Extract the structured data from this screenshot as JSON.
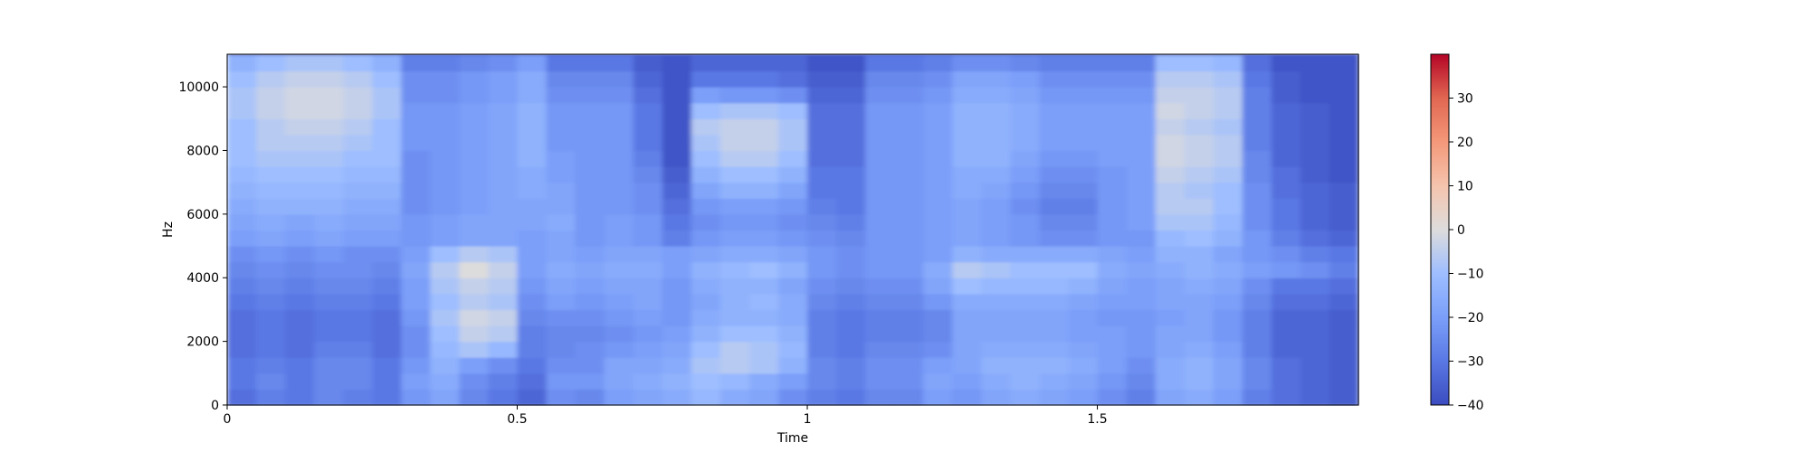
{
  "chart_data": {
    "type": "heatmap",
    "subtype": "spectrogram",
    "title": "",
    "xlabel": "Time",
    "ylabel": "Hz",
    "xlim": [
      0,
      1.95
    ],
    "ylim": [
      0,
      11025
    ],
    "xticks": [
      0,
      0.5,
      1,
      1.5
    ],
    "xtick_labels": [
      "0",
      "0.5",
      "1",
      "1.5"
    ],
    "yticks": [
      0,
      2000,
      4000,
      6000,
      8000,
      10000
    ],
    "ytick_labels": [
      "0",
      "2000",
      "4000",
      "6000",
      "8000",
      "10000"
    ],
    "colormap": "coolwarm",
    "colorbar": {
      "vmin": -40,
      "vmax": 40,
      "ticks": [
        -40,
        -30,
        -20,
        -10,
        0,
        10,
        20,
        30
      ],
      "tick_labels": [
        "−40",
        "−30",
        "−20",
        "−10",
        "0",
        "10",
        "20",
        "30"
      ]
    },
    "grid": false,
    "time_axis": [
      0.0,
      0.05,
      0.1,
      0.15,
      0.2,
      0.25,
      0.3,
      0.35,
      0.4,
      0.45,
      0.5,
      0.55,
      0.6,
      0.65,
      0.7,
      0.75,
      0.8,
      0.85,
      0.9,
      0.95,
      1.0,
      1.05,
      1.1,
      1.15,
      1.2,
      1.25,
      1.3,
      1.35,
      1.4,
      1.45,
      1.5,
      1.55,
      1.6,
      1.65,
      1.7,
      1.75,
      1.8,
      1.85,
      1.9
    ],
    "frequency_axis_hz": [
      0,
      500,
      1000,
      1500,
      2000,
      2500,
      3000,
      3500,
      4000,
      4500,
      5000,
      5500,
      6000,
      6500,
      7000,
      7500,
      8000,
      8500,
      9000,
      9500,
      10000,
      10500,
      11000
    ],
    "values_db": [
      [
        -32,
        -28,
        -30,
        -26,
        -28,
        -30,
        -22,
        -18,
        -26,
        -30,
        -34,
        -24,
        -26,
        -20,
        -18,
        -16,
        -12,
        -16,
        -18,
        -24,
        -28,
        -30,
        -26,
        -26,
        -20,
        -22,
        -18,
        -16,
        -18,
        -20,
        -24,
        -28,
        -18,
        -16,
        -20,
        -28,
        -32,
        -34,
        -36
      ],
      [
        -30,
        -26,
        -30,
        -26,
        -26,
        -30,
        -20,
        -16,
        -24,
        -28,
        -32,
        -22,
        -22,
        -18,
        -16,
        -14,
        -10,
        -12,
        -16,
        -20,
        -26,
        -28,
        -24,
        -24,
        -18,
        -20,
        -16,
        -14,
        -16,
        -18,
        -22,
        -26,
        -16,
        -14,
        -18,
        -26,
        -32,
        -34,
        -36
      ],
      [
        -30,
        -28,
        -30,
        -26,
        -26,
        -30,
        -22,
        -14,
        -20,
        -24,
        -30,
        -24,
        -24,
        -18,
        -18,
        -16,
        -8,
        -6,
        -8,
        -14,
        -26,
        -28,
        -24,
        -24,
        -20,
        -18,
        -14,
        -14,
        -14,
        -16,
        -20,
        -24,
        -16,
        -14,
        -18,
        -26,
        -32,
        -34,
        -36
      ],
      [
        -32,
        -30,
        -32,
        -28,
        -28,
        -32,
        -24,
        -12,
        -8,
        -12,
        -28,
        -26,
        -24,
        -22,
        -20,
        -18,
        -10,
        -6,
        -8,
        -12,
        -28,
        -30,
        -26,
        -26,
        -24,
        -18,
        -16,
        -16,
        -16,
        -18,
        -20,
        -22,
        -18,
        -16,
        -20,
        -28,
        -34,
        -34,
        -36
      ],
      [
        -32,
        -30,
        -32,
        -30,
        -30,
        -32,
        -24,
        -10,
        -4,
        -6,
        -28,
        -26,
        -26,
        -24,
        -22,
        -20,
        -14,
        -10,
        -10,
        -14,
        -28,
        -30,
        -28,
        -28,
        -26,
        -18,
        -18,
        -18,
        -18,
        -20,
        -20,
        -22,
        -18,
        -18,
        -22,
        -28,
        -34,
        -34,
        -36
      ],
      [
        -32,
        -30,
        -32,
        -30,
        -30,
        -32,
        -22,
        -8,
        -2,
        -4,
        -26,
        -24,
        -24,
        -22,
        -20,
        -22,
        -16,
        -14,
        -14,
        -16,
        -28,
        -30,
        -28,
        -28,
        -26,
        -18,
        -18,
        -18,
        -18,
        -20,
        -22,
        -22,
        -20,
        -18,
        -22,
        -28,
        -34,
        -34,
        -36
      ],
      [
        -30,
        -28,
        -30,
        -28,
        -28,
        -30,
        -20,
        -10,
        -6,
        -8,
        -24,
        -20,
        -22,
        -20,
        -18,
        -22,
        -18,
        -14,
        -12,
        -16,
        -26,
        -28,
        -26,
        -26,
        -22,
        -16,
        -16,
        -16,
        -16,
        -18,
        -20,
        -20,
        -18,
        -18,
        -20,
        -26,
        -32,
        -32,
        -34
      ],
      [
        -28,
        -26,
        -28,
        -26,
        -26,
        -28,
        -20,
        -8,
        -4,
        -6,
        -22,
        -18,
        -20,
        -18,
        -18,
        -22,
        -16,
        -14,
        -14,
        -18,
        -24,
        -26,
        -24,
        -24,
        -18,
        -10,
        -12,
        -12,
        -12,
        -14,
        -18,
        -20,
        -18,
        -16,
        -18,
        -24,
        -30,
        -30,
        -32
      ],
      [
        -26,
        -24,
        -26,
        -24,
        -24,
        -26,
        -18,
        -6,
        0,
        -4,
        -20,
        -16,
        -18,
        -16,
        -16,
        -20,
        -14,
        -12,
        -10,
        -14,
        -22,
        -24,
        -22,
        -22,
        -16,
        -6,
        -8,
        -10,
        -10,
        -10,
        -16,
        -18,
        -16,
        -14,
        -16,
        -20,
        -22,
        -24,
        -28
      ],
      [
        -24,
        -22,
        -24,
        -22,
        -24,
        -24,
        -20,
        -10,
        -6,
        -8,
        -20,
        -18,
        -20,
        -18,
        -18,
        -20,
        -18,
        -16,
        -16,
        -18,
        -22,
        -24,
        -22,
        -22,
        -20,
        -14,
        -16,
        -16,
        -16,
        -16,
        -18,
        -20,
        -14,
        -14,
        -18,
        -22,
        -24,
        -28,
        -30
      ],
      [
        -20,
        -18,
        -20,
        -18,
        -20,
        -20,
        -22,
        -20,
        -18,
        -18,
        -20,
        -18,
        -22,
        -20,
        -22,
        -28,
        -22,
        -20,
        -20,
        -22,
        -24,
        -26,
        -22,
        -22,
        -20,
        -18,
        -20,
        -22,
        -24,
        -24,
        -22,
        -22,
        -12,
        -10,
        -14,
        -22,
        -28,
        -32,
        -34
      ],
      [
        -18,
        -16,
        -18,
        -16,
        -18,
        -18,
        -22,
        -20,
        -18,
        -18,
        -18,
        -16,
        -22,
        -20,
        -22,
        -30,
        -24,
        -22,
        -22,
        -24,
        -26,
        -28,
        -22,
        -22,
        -20,
        -18,
        -20,
        -22,
        -26,
        -26,
        -22,
        -20,
        -8,
        -8,
        -12,
        -24,
        -30,
        -34,
        -36
      ],
      [
        -16,
        -14,
        -14,
        -14,
        -16,
        -16,
        -24,
        -22,
        -20,
        -18,
        -18,
        -18,
        -22,
        -22,
        -24,
        -32,
        -22,
        -20,
        -20,
        -22,
        -28,
        -30,
        -22,
        -22,
        -20,
        -18,
        -20,
        -24,
        -28,
        -28,
        -22,
        -20,
        -6,
        -6,
        -10,
        -24,
        -30,
        -34,
        -36
      ],
      [
        -14,
        -12,
        -12,
        -12,
        -14,
        -14,
        -24,
        -22,
        -20,
        -18,
        -16,
        -18,
        -22,
        -22,
        -24,
        -34,
        -18,
        -14,
        -14,
        -18,
        -30,
        -30,
        -22,
        -22,
        -20,
        -16,
        -18,
        -22,
        -26,
        -26,
        -22,
        -20,
        -6,
        -8,
        -10,
        -24,
        -32,
        -34,
        -36
      ],
      [
        -12,
        -10,
        -10,
        -10,
        -12,
        -12,
        -24,
        -22,
        -20,
        -18,
        -16,
        -20,
        -22,
        -22,
        -26,
        -36,
        -14,
        -10,
        -10,
        -14,
        -30,
        -30,
        -22,
        -22,
        -20,
        -16,
        -16,
        -20,
        -24,
        -24,
        -22,
        -20,
        -4,
        -6,
        -8,
        -26,
        -32,
        -36,
        -38
      ],
      [
        -10,
        -8,
        -8,
        -8,
        -10,
        -10,
        -24,
        -22,
        -20,
        -18,
        -14,
        -20,
        -22,
        -22,
        -28,
        -38,
        -10,
        -6,
        -6,
        -10,
        -32,
        -32,
        -22,
        -22,
        -20,
        -14,
        -14,
        -18,
        -22,
        -22,
        -20,
        -20,
        -2,
        -4,
        -6,
        -26,
        -34,
        -36,
        -38
      ],
      [
        -10,
        -6,
        -6,
        -6,
        -8,
        -10,
        -22,
        -22,
        -20,
        -18,
        -14,
        -22,
        -22,
        -22,
        -30,
        -38,
        -8,
        -4,
        -4,
        -8,
        -32,
        -32,
        -22,
        -22,
        -20,
        -14,
        -14,
        -16,
        -20,
        -20,
        -20,
        -20,
        -2,
        -4,
        -6,
        -28,
        -34,
        -36,
        -38
      ],
      [
        -10,
        -6,
        -4,
        -4,
        -6,
        -10,
        -22,
        -22,
        -20,
        -18,
        -14,
        -22,
        -22,
        -22,
        -30,
        -38,
        -6,
        -4,
        -4,
        -8,
        -32,
        -32,
        -22,
        -22,
        -20,
        -14,
        -14,
        -16,
        -20,
        -20,
        -20,
        -20,
        -4,
        -6,
        -8,
        -28,
        -34,
        -36,
        -38
      ],
      [
        -8,
        -4,
        -2,
        -2,
        -4,
        -8,
        -22,
        -22,
        -20,
        -18,
        -14,
        -22,
        -22,
        -22,
        -30,
        -38,
        -10,
        -8,
        -8,
        -10,
        -32,
        -32,
        -22,
        -22,
        -20,
        -14,
        -14,
        -16,
        -20,
        -20,
        -20,
        -20,
        -2,
        -4,
        -6,
        -28,
        -34,
        -36,
        -38
      ],
      [
        -8,
        -4,
        -2,
        -2,
        -4,
        -8,
        -24,
        -24,
        -22,
        -20,
        -16,
        -24,
        -24,
        -24,
        -32,
        -38,
        -20,
        -22,
        -22,
        -24,
        -34,
        -34,
        -24,
        -24,
        -22,
        -16,
        -16,
        -18,
        -22,
        -22,
        -22,
        -22,
        -4,
        -4,
        -6,
        -28,
        -36,
        -38,
        -38
      ],
      [
        -10,
        -6,
        -4,
        -4,
        -6,
        -10,
        -24,
        -24,
        -22,
        -20,
        -16,
        -26,
        -26,
        -26,
        -34,
        -38,
        -30,
        -30,
        -30,
        -32,
        -36,
        -36,
        -26,
        -26,
        -24,
        -18,
        -18,
        -20,
        -24,
        -24,
        -24,
        -24,
        -6,
        -6,
        -8,
        -30,
        -36,
        -38,
        -38
      ],
      [
        -14,
        -10,
        -8,
        -8,
        -10,
        -14,
        -28,
        -28,
        -26,
        -24,
        -20,
        -30,
        -30,
        -30,
        -36,
        -38,
        -34,
        -34,
        -34,
        -34,
        -38,
        -38,
        -30,
        -30,
        -28,
        -24,
        -24,
        -26,
        -28,
        -28,
        -28,
        -28,
        -10,
        -10,
        -12,
        -32,
        -38,
        -38,
        -38
      ],
      [
        -38,
        -38,
        -38,
        -38,
        -38,
        -38,
        -38,
        -38,
        -38,
        -38,
        -38,
        -38,
        -38,
        -38,
        -38,
        -38,
        -38,
        -38,
        -38,
        -38,
        -38,
        -38,
        -38,
        -38,
        -38,
        -38,
        -38,
        -38,
        -38,
        -38,
        -38,
        -38,
        -38,
        -38,
        -38,
        -38,
        -38,
        -38,
        -38
      ]
    ]
  }
}
